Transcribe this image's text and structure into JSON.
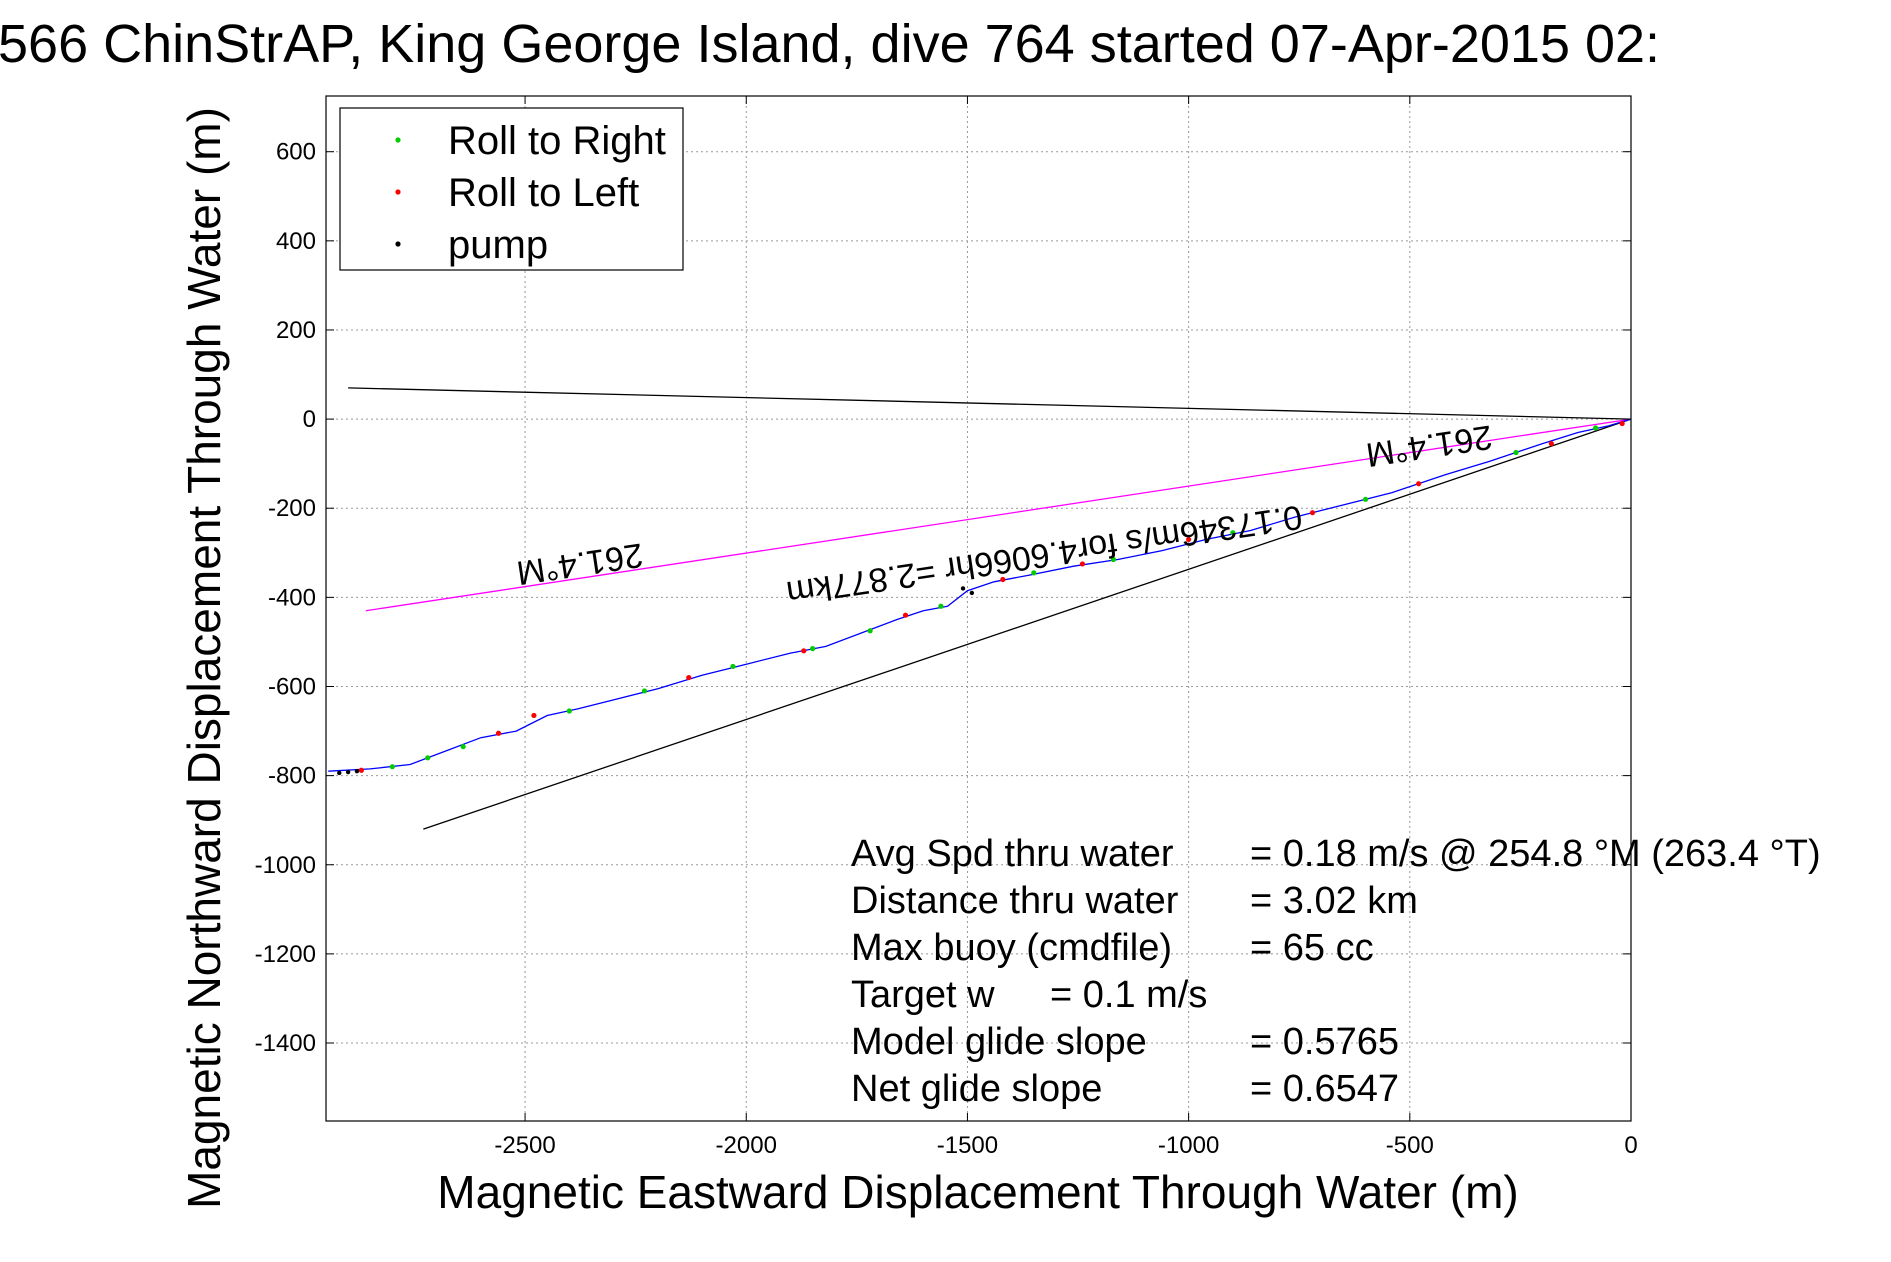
{
  "chart_data": {
    "type": "scatter",
    "title": "566 ChinStrAP, King George Island, dive 764 started 07-Apr-2015 02:",
    "xlabel": "Magnetic Eastward Displacement Through Water (m)",
    "ylabel": "Magnetic Northward Displacement Through Water (m)",
    "xlim": [
      -2950,
      0
    ],
    "ylim": [
      -1575,
      725
    ],
    "xticks": [
      -2500,
      -2000,
      -1500,
      -1000,
      -500,
      0
    ],
    "yticks": [
      600,
      400,
      200,
      0,
      -200,
      -400,
      -600,
      -800,
      -1000,
      -1200,
      -1400
    ],
    "grid": true,
    "legend_position": "top-left",
    "legend": [
      {
        "name": "Roll to Right",
        "color": "#00cc00"
      },
      {
        "name": "Roll to Left",
        "color": "#ff0000"
      },
      {
        "name": "pump",
        "color": "#000000"
      }
    ],
    "track": {
      "color": "#0000ff",
      "points": [
        [
          0,
          0
        ],
        [
          -50,
          -15
        ],
        [
          -120,
          -30
        ],
        [
          -200,
          -55
        ],
        [
          -320,
          -95
        ],
        [
          -420,
          -125
        ],
        [
          -540,
          -165
        ],
        [
          -660,
          -195
        ],
        [
          -760,
          -220
        ],
        [
          -860,
          -250
        ],
        [
          -960,
          -270
        ],
        [
          -1060,
          -295
        ],
        [
          -1160,
          -315
        ],
        [
          -1260,
          -330
        ],
        [
          -1360,
          -350
        ],
        [
          -1440,
          -365
        ],
        [
          -1500,
          -385
        ],
        [
          -1545,
          -420
        ],
        [
          -1600,
          -430
        ],
        [
          -1660,
          -450
        ],
        [
          -1740,
          -480
        ],
        [
          -1820,
          -510
        ],
        [
          -1900,
          -525
        ],
        [
          -2000,
          -550
        ],
        [
          -2100,
          -575
        ],
        [
          -2200,
          -605
        ],
        [
          -2300,
          -630
        ],
        [
          -2380,
          -650
        ],
        [
          -2450,
          -665
        ],
        [
          -2520,
          -700
        ],
        [
          -2600,
          -715
        ],
        [
          -2680,
          -745
        ],
        [
          -2760,
          -775
        ],
        [
          -2850,
          -785
        ],
        [
          -2945,
          -790
        ]
      ]
    },
    "roll_right_points": [
      [
        -80,
        -20
      ],
      [
        -260,
        -75
      ],
      [
        -600,
        -180
      ],
      [
        -900,
        -255
      ],
      [
        -1170,
        -315
      ],
      [
        -1350,
        -345
      ],
      [
        -1560,
        -420
      ],
      [
        -1720,
        -475
      ],
      [
        -1850,
        -515
      ],
      [
        -2030,
        -555
      ],
      [
        -2230,
        -610
      ],
      [
        -2400,
        -655
      ],
      [
        -2640,
        -735
      ],
      [
        -2720,
        -760
      ],
      [
        -2800,
        -780
      ]
    ],
    "roll_left_points": [
      [
        -20,
        -10
      ],
      [
        -180,
        -55
      ],
      [
        -480,
        -145
      ],
      [
        -720,
        -210
      ],
      [
        -1000,
        -270
      ],
      [
        -1240,
        -325
      ],
      [
        -1420,
        -360
      ],
      [
        -1640,
        -440
      ],
      [
        -1870,
        -520
      ],
      [
        -2130,
        -580
      ],
      [
        -2480,
        -665
      ],
      [
        -2560,
        -705
      ],
      [
        -2870,
        -788
      ]
    ],
    "pump_points": [
      [
        -1490,
        -390
      ],
      [
        -1510,
        -380
      ],
      [
        -2880,
        -790
      ],
      [
        -2900,
        -792
      ],
      [
        -2920,
        -794
      ]
    ],
    "lines": [
      {
        "color": "#000000",
        "from": [
          0,
          0
        ],
        "to": [
          -2900,
          70
        ]
      },
      {
        "color": "#000000",
        "from": [
          0,
          0
        ],
        "to": [
          -2730,
          -920
        ]
      },
      {
        "color": "#ff00ff",
        "from": [
          0,
          0
        ],
        "to": [
          -2860,
          -430
        ]
      }
    ],
    "annotations": [
      {
        "text": "261.4°M",
        "at": [
          -2380,
          -300
        ],
        "rotate": 171.5
      },
      {
        "text": "0.17346m/s for4.6066hr =2.877km",
        "at": [
          -1330,
          -280
        ],
        "rotate": 171.5
      },
      {
        "text": "261.4°M",
        "at": [
          -460,
          -35
        ],
        "rotate": 171.5
      }
    ],
    "stats": [
      {
        "label": "Avg Spd thru water",
        "value": "=  0.18 m/s @ 254.8 °M (263.4 °T)"
      },
      {
        "label": "Distance thru water",
        "value": "=  3.02 km"
      },
      {
        "label": "Max buoy (cmdfile)",
        "value": "= 65 cc"
      },
      {
        "label": "Target w",
        "value": "= 0.1 m/s"
      },
      {
        "label": "Model glide slope",
        "value": "= 0.5765"
      },
      {
        "label": "Net glide slope",
        "value": "= 0.6547"
      }
    ]
  }
}
